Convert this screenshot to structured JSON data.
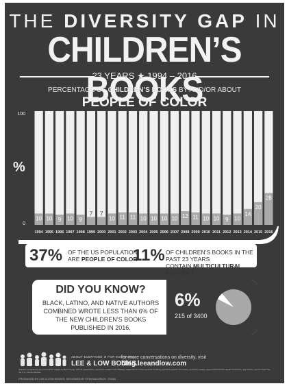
{
  "header": {
    "title_line1_prefix": "THE",
    "title_line1_bold": "DIVERSITY GAP",
    "title_line1_suffix": "IN",
    "title_line2": "CHILDREN’S BOOKS",
    "subtitle": "23 YEARS ★ 1994 – 2016"
  },
  "chart_data": {
    "type": "bar",
    "title_small_prefix": "PERCENTAGE OF",
    "title_small_bold": "CHILDREN’S BOOKS",
    "title_small_suffix": "BY AND/OR ABOUT",
    "title": "PEOPLE OF COLOR",
    "ylabel": "%",
    "ylim": [
      0,
      100
    ],
    "yticks": [
      "0",
      "100"
    ],
    "categories": [
      "1994",
      "1995",
      "1996",
      "1997",
      "1998",
      "1999",
      "2000",
      "2001",
      "2002",
      "2003",
      "2004",
      "2005",
      "2006",
      "2007",
      "2008",
      "2009",
      "2010",
      "2011",
      "2012",
      "2013",
      "2014",
      "2015",
      "2016"
    ],
    "values": [
      10,
      10,
      9,
      10,
      9,
      7,
      7,
      10,
      11,
      11,
      10,
      10,
      10,
      10,
      12,
      11,
      10,
      10,
      9,
      10,
      14,
      20,
      28
    ],
    "colors": {
      "bar": "#a9a9a9",
      "background_bar": "#f0f0f0",
      "bar_label_dark": "#3a3a3a",
      "bar_label_light": "#ffffff"
    }
  },
  "stats": {
    "left_pct": "37%",
    "left_line1": "OF THE US POPULATION",
    "left_line2_prefix": "ARE",
    "left_line2_bold": "PEOPLE OF COLOR",
    "right_pct": "11%",
    "right_line1": "OF CHILDREN’S BOOKS IN THE PAST 23 YEARS",
    "right_line2_prefix": "CONTAIN",
    "right_line2_bold": "MULTICULTURAL CONTENT"
  },
  "did_you_know": {
    "title": "DID YOU KNOW?",
    "body": "BLACK, LATINO, AND NATIVE AUTHORS COMBINED WROTE LESS THAN 6% OF THE NEW CHILDREN’S BOOKS PUBLISHED IN 2016.",
    "pct": "6%",
    "count": "215 of 3400",
    "pie_fraction": 0.063,
    "pie_colors": {
      "slice": "#ffffff",
      "rest": "#a9a9a9"
    }
  },
  "footer": {
    "brand_tag": "ABOUT EVERYONE ★ FOR EVERYONE",
    "brand_name": "LEE & LOW BOOKS",
    "cta": "for more conversations on diversity, visit",
    "url": "blog.leeandlow.com",
    "fine_print": "Statistics compiled by the Cooperative Children’s Book Center, School of Education, University of Wisconsin-Madison. Multicultural content includes books by and about African Americans, American Indians, Asian Pacifics/Asian Pacific Americans, and Latinos. Census data from the U.S. Census Bureau.",
    "credit": "PRODUCED BY LEE & LOW BOOKS. DESIGNED BY RON MALVRICK. ©2016"
  }
}
